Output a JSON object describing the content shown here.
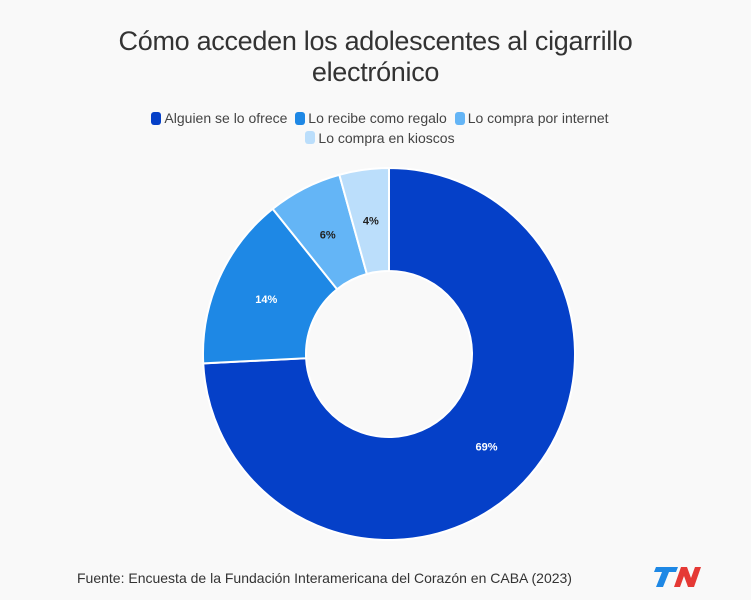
{
  "chart_data": {
    "type": "donut",
    "title_lines": [
      "Cómo acceden los adolescentes al cigarrillo",
      "electrónico"
    ],
    "categories": [
      "Alguien se lo ofrece",
      "Lo recibe como regalo",
      "Lo compra por internet",
      "Lo compra en kioscos"
    ],
    "values": [
      69,
      14,
      6,
      4
    ],
    "labels": [
      "69%",
      "14%",
      "6%",
      "4%"
    ],
    "colors": [
      "#0540c8",
      "#1e88e5",
      "#64b5f6",
      "#bbdefb"
    ],
    "label_colors": [
      "#ffffff",
      "#ffffff",
      "#222222",
      "#222222"
    ],
    "legend_position": "top"
  },
  "source": "Fuente: Encuesta de la Fundación Interamericana del Corazón en CABA (2023)",
  "logo_text": "TN"
}
